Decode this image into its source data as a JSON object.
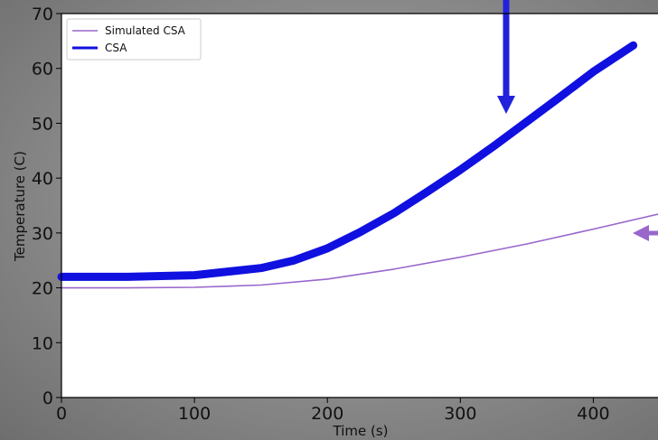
{
  "chart_data": {
    "type": "line",
    "xlabel": "Time (s)",
    "ylabel": "Temperature (C)",
    "xlim": [
      0,
      450
    ],
    "ylim": [
      0,
      70
    ],
    "x_ticks": [
      0,
      100,
      200,
      300,
      400
    ],
    "y_ticks": [
      0,
      10,
      20,
      30,
      40,
      50,
      60,
      70
    ],
    "grid": false,
    "legend_position": "top-left",
    "series": [
      {
        "name": "Simulated CSA",
        "color": "#9966cc",
        "x": [
          0,
          50,
          100,
          150,
          200,
          250,
          300,
          350,
          400,
          450
        ],
        "y": [
          20.0,
          20.0,
          20.1,
          20.5,
          21.6,
          23.4,
          25.6,
          28.0,
          30.7,
          33.5
        ]
      },
      {
        "name": "CSA",
        "color": "#1010e0",
        "x": [
          0,
          50,
          100,
          150,
          175,
          200,
          225,
          250,
          275,
          300,
          325,
          350,
          375,
          400,
          425,
          430
        ],
        "y": [
          22.0,
          22.0,
          22.3,
          23.6,
          25.0,
          27.2,
          30.2,
          33.6,
          37.5,
          41.5,
          45.8,
          50.3,
          54.8,
          59.4,
          63.4,
          64.2
        ]
      }
    ],
    "annotations": [
      {
        "shape": "arrow",
        "direction": "down",
        "color": "#2222dd"
      },
      {
        "shape": "arrow",
        "direction": "left",
        "color": "#9966cc"
      }
    ]
  }
}
